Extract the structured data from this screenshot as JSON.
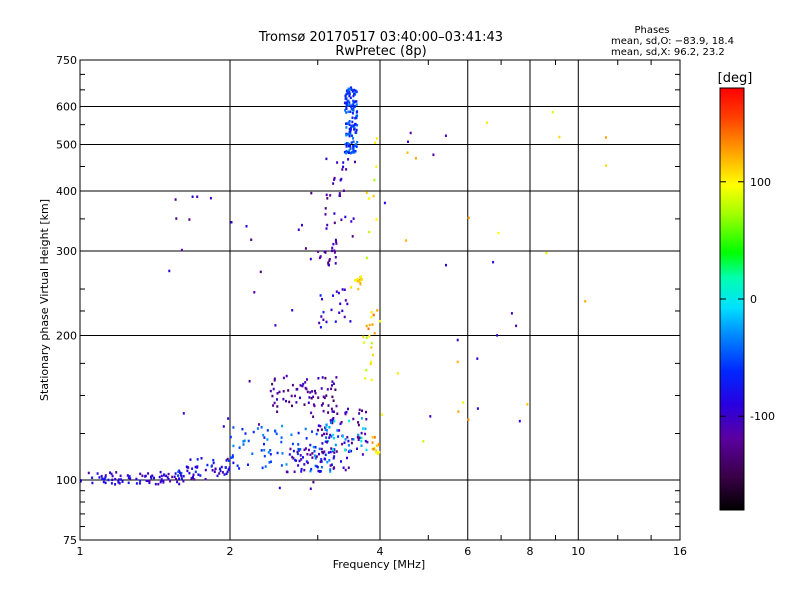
{
  "chart_data": {
    "type": "scatter",
    "title": "Tromsø 20170517 03:40:00–03:41:43",
    "subtitle": "RwPretec (8p)",
    "xlabel": "Frequency [MHz]",
    "ylabel": "Stationary phase Virtual Height [km]",
    "x_scale": "log",
    "y_scale": "log",
    "xlim": [
      1,
      16
    ],
    "ylim": [
      75,
      750
    ],
    "x_ticks": [
      1,
      2,
      4,
      6,
      8,
      10,
      16
    ],
    "y_ticks": [
      75,
      100,
      200,
      300,
      400,
      500,
      600,
      750
    ],
    "grid": true,
    "phases": {
      "title": "Phases",
      "line_o": "mean, sd,O: −83.9, 18.4",
      "line_x": "mean, sd,X:  96.2, 23.2"
    },
    "colorbar": {
      "label": "[deg]",
      "ticks": [
        100,
        0,
        -100
      ],
      "range": [
        -180,
        180
      ]
    },
    "point_groups": [
      {
        "x": [
          1.0,
          1.6
        ],
        "y": [
          98,
          104
        ],
        "phase": -95,
        "n": 80
      },
      {
        "x": [
          1.6,
          2.0
        ],
        "y": [
          100,
          108
        ],
        "phase": -100,
        "n": 30
      },
      {
        "x": [
          1.55,
          2.0
        ],
        "y": [
          102,
          112
        ],
        "phase": -70,
        "n": 25
      },
      {
        "x": [
          2.0,
          3.3
        ],
        "y": [
          104,
          130
        ],
        "phase": -50,
        "n": 90
      },
      {
        "x": [
          2.6,
          3.5
        ],
        "y": [
          104,
          118
        ],
        "phase": -100,
        "n": 50
      },
      {
        "x": [
          2.4,
          3.3
        ],
        "y": [
          138,
          165
        ],
        "phase": -120,
        "n": 70
      },
      {
        "x": [
          3.0,
          3.8
        ],
        "y": [
          113,
          142
        ],
        "phase": -110,
        "n": 60
      },
      {
        "x": [
          3.1,
          3.8
        ],
        "y": [
          115,
          135
        ],
        "phase": -10,
        "n": 25
      },
      {
        "x": [
          3.4,
          3.6
        ],
        "y": [
          480,
          660
        ],
        "phase": -55,
        "n": 150
      },
      {
        "x": [
          3.1,
          3.6
        ],
        "y": [
          320,
          470
        ],
        "phase": -110,
        "n": 30
      },
      {
        "x": [
          3.0,
          3.3
        ],
        "y": [
          280,
          320
        ],
        "phase": -115,
        "n": 20
      },
      {
        "x": [
          3.0,
          3.5
        ],
        "y": [
          205,
          250
        ],
        "phase": -90,
        "n": 20
      },
      {
        "x": [
          3.5,
          3.7
        ],
        "y": [
          250,
          268
        ],
        "phase": 110,
        "n": 15
      },
      {
        "x": [
          3.85,
          4.0
        ],
        "y": [
          113,
          126
        ],
        "phase": 115,
        "n": 15
      },
      {
        "x": [
          3.7,
          3.9
        ],
        "y": [
          160,
          200
        ],
        "phase": 95,
        "n": 12
      },
      {
        "x": [
          3.75,
          4.0
        ],
        "y": [
          200,
          228
        ],
        "phase": 120,
        "n": 10
      },
      {
        "x": [
          3.75,
          4.0
        ],
        "y": [
          290,
          520
        ],
        "phase": 90,
        "n": 10
      },
      {
        "x": [
          4.0,
          12.0
        ],
        "y": [
          120,
          600
        ],
        "phase": 105,
        "n": 20
      },
      {
        "x": [
          4.0,
          8.0
        ],
        "y": [
          130,
          560
        ],
        "phase": -100,
        "n": 15
      },
      {
        "x": [
          1.5,
          3.5
        ],
        "y": [
          90,
          410
        ],
        "phase": -110,
        "n": 40
      }
    ]
  }
}
